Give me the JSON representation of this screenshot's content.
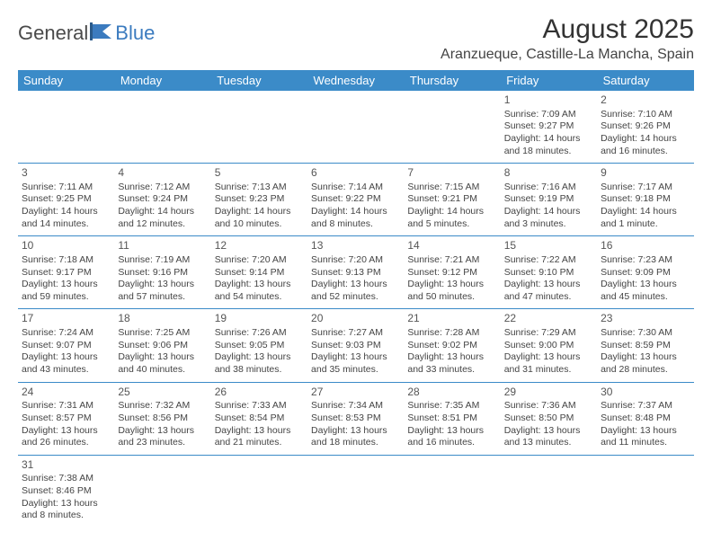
{
  "logo": {
    "part1": "General",
    "part2": "Blue"
  },
  "title": "August 2025",
  "location": "Aranzueque, Castille-La Mancha, Spain",
  "colors": {
    "headerBg": "#3b8bc8",
    "headerText": "#ffffff",
    "rule": "#3b8bc8",
    "text": "#444444",
    "logoBlue": "#3b7bbf",
    "logoGray": "#4a4a4a"
  },
  "dayHeaders": [
    "Sunday",
    "Monday",
    "Tuesday",
    "Wednesday",
    "Thursday",
    "Friday",
    "Saturday"
  ],
  "weeks": [
    [
      null,
      null,
      null,
      null,
      null,
      {
        "n": "1",
        "sunrise": "Sunrise: 7:09 AM",
        "sunset": "Sunset: 9:27 PM",
        "daylight": "Daylight: 14 hours and 18 minutes."
      },
      {
        "n": "2",
        "sunrise": "Sunrise: 7:10 AM",
        "sunset": "Sunset: 9:26 PM",
        "daylight": "Daylight: 14 hours and 16 minutes."
      }
    ],
    [
      {
        "n": "3",
        "sunrise": "Sunrise: 7:11 AM",
        "sunset": "Sunset: 9:25 PM",
        "daylight": "Daylight: 14 hours and 14 minutes."
      },
      {
        "n": "4",
        "sunrise": "Sunrise: 7:12 AM",
        "sunset": "Sunset: 9:24 PM",
        "daylight": "Daylight: 14 hours and 12 minutes."
      },
      {
        "n": "5",
        "sunrise": "Sunrise: 7:13 AM",
        "sunset": "Sunset: 9:23 PM",
        "daylight": "Daylight: 14 hours and 10 minutes."
      },
      {
        "n": "6",
        "sunrise": "Sunrise: 7:14 AM",
        "sunset": "Sunset: 9:22 PM",
        "daylight": "Daylight: 14 hours and 8 minutes."
      },
      {
        "n": "7",
        "sunrise": "Sunrise: 7:15 AM",
        "sunset": "Sunset: 9:21 PM",
        "daylight": "Daylight: 14 hours and 5 minutes."
      },
      {
        "n": "8",
        "sunrise": "Sunrise: 7:16 AM",
        "sunset": "Sunset: 9:19 PM",
        "daylight": "Daylight: 14 hours and 3 minutes."
      },
      {
        "n": "9",
        "sunrise": "Sunrise: 7:17 AM",
        "sunset": "Sunset: 9:18 PM",
        "daylight": "Daylight: 14 hours and 1 minute."
      }
    ],
    [
      {
        "n": "10",
        "sunrise": "Sunrise: 7:18 AM",
        "sunset": "Sunset: 9:17 PM",
        "daylight": "Daylight: 13 hours and 59 minutes."
      },
      {
        "n": "11",
        "sunrise": "Sunrise: 7:19 AM",
        "sunset": "Sunset: 9:16 PM",
        "daylight": "Daylight: 13 hours and 57 minutes."
      },
      {
        "n": "12",
        "sunrise": "Sunrise: 7:20 AM",
        "sunset": "Sunset: 9:14 PM",
        "daylight": "Daylight: 13 hours and 54 minutes."
      },
      {
        "n": "13",
        "sunrise": "Sunrise: 7:20 AM",
        "sunset": "Sunset: 9:13 PM",
        "daylight": "Daylight: 13 hours and 52 minutes."
      },
      {
        "n": "14",
        "sunrise": "Sunrise: 7:21 AM",
        "sunset": "Sunset: 9:12 PM",
        "daylight": "Daylight: 13 hours and 50 minutes."
      },
      {
        "n": "15",
        "sunrise": "Sunrise: 7:22 AM",
        "sunset": "Sunset: 9:10 PM",
        "daylight": "Daylight: 13 hours and 47 minutes."
      },
      {
        "n": "16",
        "sunrise": "Sunrise: 7:23 AM",
        "sunset": "Sunset: 9:09 PM",
        "daylight": "Daylight: 13 hours and 45 minutes."
      }
    ],
    [
      {
        "n": "17",
        "sunrise": "Sunrise: 7:24 AM",
        "sunset": "Sunset: 9:07 PM",
        "daylight": "Daylight: 13 hours and 43 minutes."
      },
      {
        "n": "18",
        "sunrise": "Sunrise: 7:25 AM",
        "sunset": "Sunset: 9:06 PM",
        "daylight": "Daylight: 13 hours and 40 minutes."
      },
      {
        "n": "19",
        "sunrise": "Sunrise: 7:26 AM",
        "sunset": "Sunset: 9:05 PM",
        "daylight": "Daylight: 13 hours and 38 minutes."
      },
      {
        "n": "20",
        "sunrise": "Sunrise: 7:27 AM",
        "sunset": "Sunset: 9:03 PM",
        "daylight": "Daylight: 13 hours and 35 minutes."
      },
      {
        "n": "21",
        "sunrise": "Sunrise: 7:28 AM",
        "sunset": "Sunset: 9:02 PM",
        "daylight": "Daylight: 13 hours and 33 minutes."
      },
      {
        "n": "22",
        "sunrise": "Sunrise: 7:29 AM",
        "sunset": "Sunset: 9:00 PM",
        "daylight": "Daylight: 13 hours and 31 minutes."
      },
      {
        "n": "23",
        "sunrise": "Sunrise: 7:30 AM",
        "sunset": "Sunset: 8:59 PM",
        "daylight": "Daylight: 13 hours and 28 minutes."
      }
    ],
    [
      {
        "n": "24",
        "sunrise": "Sunrise: 7:31 AM",
        "sunset": "Sunset: 8:57 PM",
        "daylight": "Daylight: 13 hours and 26 minutes."
      },
      {
        "n": "25",
        "sunrise": "Sunrise: 7:32 AM",
        "sunset": "Sunset: 8:56 PM",
        "daylight": "Daylight: 13 hours and 23 minutes."
      },
      {
        "n": "26",
        "sunrise": "Sunrise: 7:33 AM",
        "sunset": "Sunset: 8:54 PM",
        "daylight": "Daylight: 13 hours and 21 minutes."
      },
      {
        "n": "27",
        "sunrise": "Sunrise: 7:34 AM",
        "sunset": "Sunset: 8:53 PM",
        "daylight": "Daylight: 13 hours and 18 minutes."
      },
      {
        "n": "28",
        "sunrise": "Sunrise: 7:35 AM",
        "sunset": "Sunset: 8:51 PM",
        "daylight": "Daylight: 13 hours and 16 minutes."
      },
      {
        "n": "29",
        "sunrise": "Sunrise: 7:36 AM",
        "sunset": "Sunset: 8:50 PM",
        "daylight": "Daylight: 13 hours and 13 minutes."
      },
      {
        "n": "30",
        "sunrise": "Sunrise: 7:37 AM",
        "sunset": "Sunset: 8:48 PM",
        "daylight": "Daylight: 13 hours and 11 minutes."
      }
    ],
    [
      {
        "n": "31",
        "sunrise": "Sunrise: 7:38 AM",
        "sunset": "Sunset: 8:46 PM",
        "daylight": "Daylight: 13 hours and 8 minutes."
      },
      null,
      null,
      null,
      null,
      null,
      null
    ]
  ]
}
